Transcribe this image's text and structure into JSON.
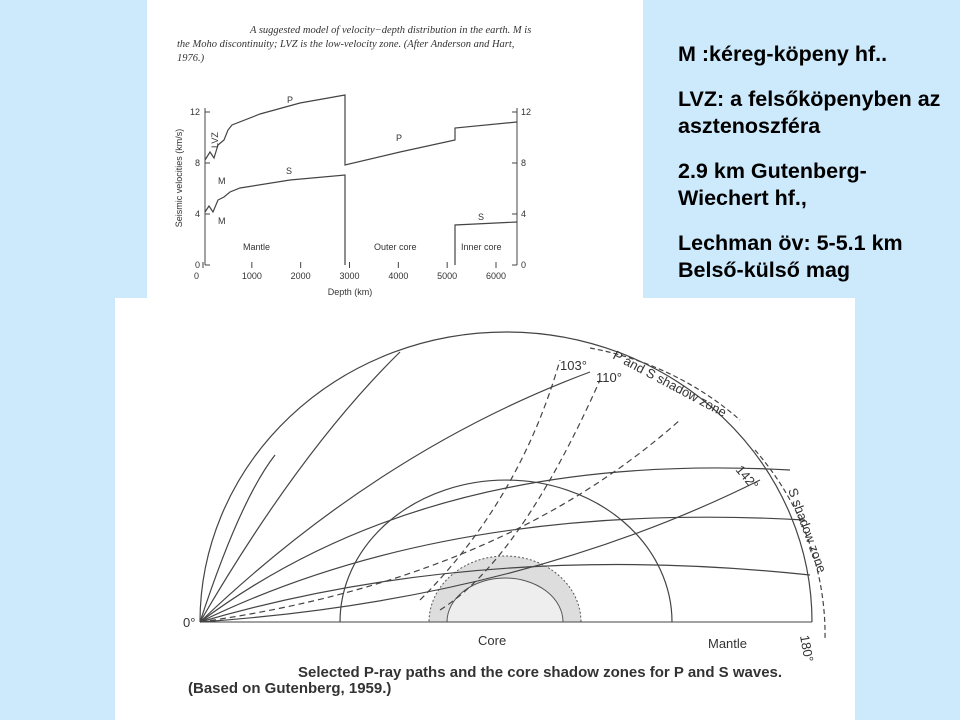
{
  "slide_text": [
    "M :kéreg-köpeny hf..",
    "LVZ: a felsőköpenyben az asztenoszféra",
    "2.9 km Gutenberg-Wiechert hf.,",
    "Lechman öv: 5-5.1 km Belső-külső mag"
  ],
  "figure_top": {
    "caption": [
      "A suggested model of velocity−depth distribution in the earth. M is",
      "the Moho discontinuity; LVZ is the low-velocity zone. (After Anderson and Hart,",
      "1976.)"
    ],
    "y_axis_label": "Seismic velocities (km/s)",
    "x_axis_label": "Depth (km)",
    "y_ticks": [
      0,
      4,
      8,
      12
    ],
    "x_ticks": [
      0,
      1000,
      2000,
      3000,
      4000,
      5000,
      6000
    ],
    "labels": {
      "p_mantle": "P",
      "s_mantle": "S",
      "lvz": "LVZ",
      "m_upper": "M",
      "m_lower": "M",
      "p_core": "P",
      "s_inner": "S",
      "mantle": "Mantle",
      "outer_core": "Outer core",
      "inner_core": "Inner core"
    }
  },
  "figure_bottom": {
    "angles": {
      "a0": "0°",
      "a103": "103°",
      "a110": "110°",
      "a142": "142°",
      "a180": "180°"
    },
    "zones": {
      "ps_shadow": "P and S shadow zone",
      "s_shadow": "S shadow zone"
    },
    "labels": {
      "core": "Core",
      "mantle": "Mantle"
    },
    "caption": [
      "Selected P-ray paths and the core shadow zones for P and S waves.",
      "(Based on Gutenberg, 1959.)"
    ]
  }
}
